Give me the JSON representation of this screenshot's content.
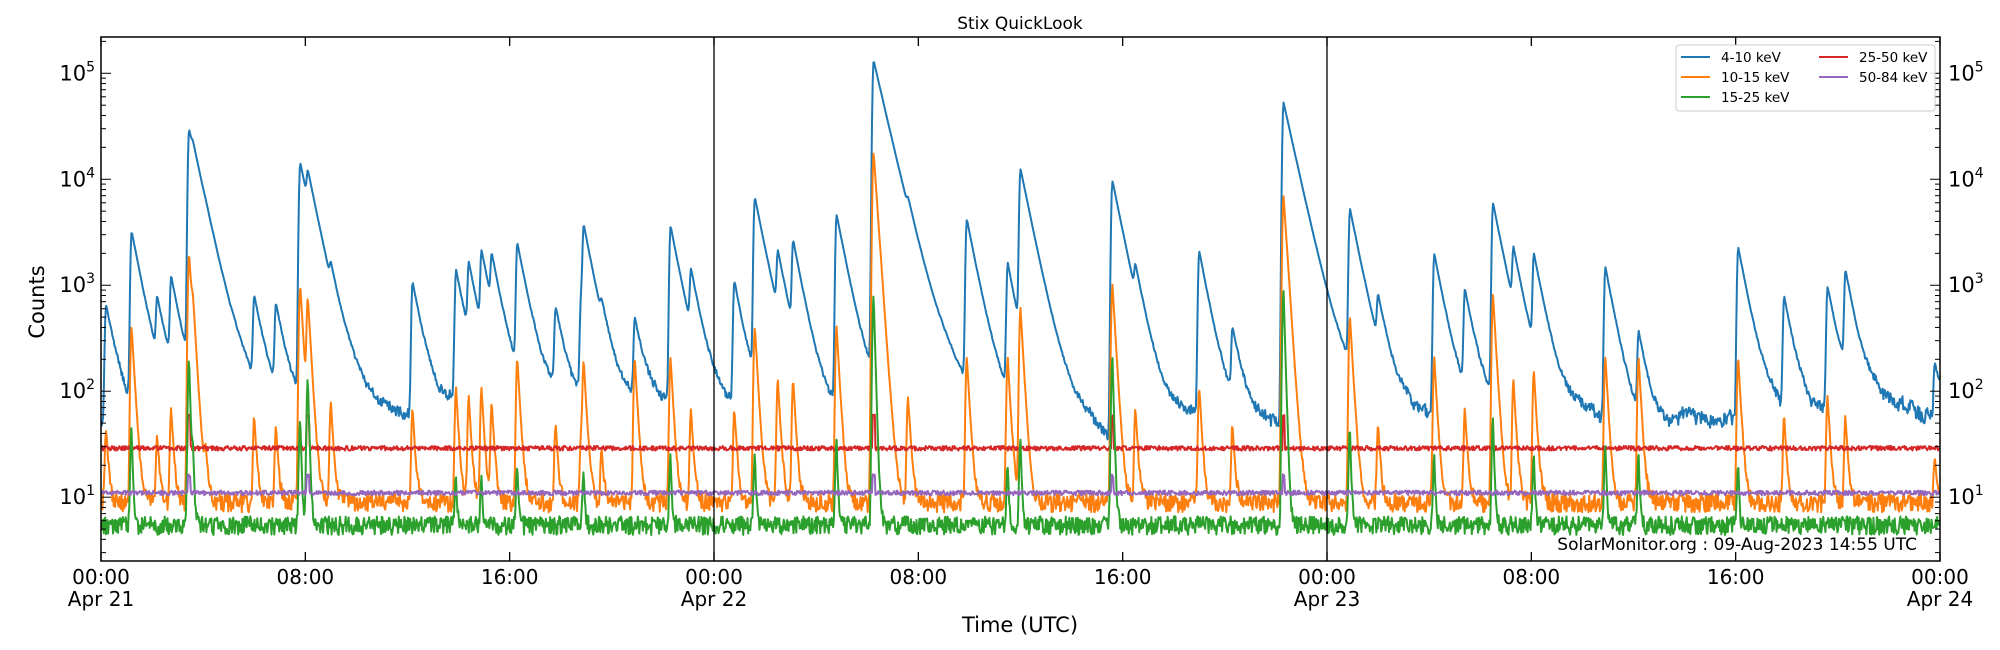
{
  "chart_data": {
    "type": "line",
    "title": "Stix QuickLook",
    "xlabel": "Time (UTC)",
    "ylabel": "Counts",
    "yscale": "log",
    "ylim": [
      2.5,
      220000
    ],
    "xlim_hours": [
      0,
      72
    ],
    "grid": false,
    "legend_placement": "top-right",
    "annotation": "SolarMonitor.org : 09-Aug-2023 14:55 UTC",
    "x_ticks": [
      {
        "hour": 0,
        "line1": "00:00",
        "line2": "Apr 21"
      },
      {
        "hour": 8,
        "line1": "08:00",
        "line2": ""
      },
      {
        "hour": 16,
        "line1": "16:00",
        "line2": ""
      },
      {
        "hour": 24,
        "line1": "00:00",
        "line2": "Apr 22"
      },
      {
        "hour": 32,
        "line1": "08:00",
        "line2": ""
      },
      {
        "hour": 40,
        "line1": "16:00",
        "line2": ""
      },
      {
        "hour": 48,
        "line1": "00:00",
        "line2": "Apr 23"
      },
      {
        "hour": 56,
        "line1": "08:00",
        "line2": ""
      },
      {
        "hour": 64,
        "line1": "16:00",
        "line2": ""
      },
      {
        "hour": 72,
        "line1": "00:00",
        "line2": "Apr 24"
      }
    ],
    "day_boundaries_hours": [
      24,
      48
    ],
    "y_ticks": [
      {
        "value": 10,
        "base": "10",
        "exp": "1"
      },
      {
        "value": 100,
        "base": "10",
        "exp": "2"
      },
      {
        "value": 1000,
        "base": "10",
        "exp": "3"
      },
      {
        "value": 10000,
        "base": "10",
        "exp": "4"
      },
      {
        "value": 100000,
        "base": "10",
        "exp": "5"
      }
    ],
    "series": [
      {
        "name": "4-10 keV",
        "color": "#1f77b4",
        "baseline": 50
      },
      {
        "name": "10-15 keV",
        "color": "#ff7f0e",
        "baseline": 9
      },
      {
        "name": "15-25 keV",
        "color": "#2ca02c",
        "baseline": 5.5
      },
      {
        "name": "25-50 keV",
        "color": "#d62728",
        "baseline": 29
      },
      {
        "name": "50-84 keV",
        "color": "#9467bd",
        "baseline": 11
      }
    ],
    "flares": [
      {
        "t": 0.2,
        "c4_10": 600,
        "c10_15": 35,
        "c15_25": 0
      },
      {
        "t": 1.2,
        "c4_10": 3100,
        "c10_15": 400,
        "c15_25": 40
      },
      {
        "t": 2.2,
        "c4_10": 550,
        "c10_15": 30,
        "c15_25": 0
      },
      {
        "t": 2.75,
        "c4_10": 1000,
        "c10_15": 60,
        "c15_25": 0
      },
      {
        "t": 3.45,
        "c4_10": 29000,
        "c10_15": 2000,
        "c15_25": 200
      },
      {
        "t": 3.6,
        "c4_10": 2800,
        "c10_15": 300,
        "c15_25": 20
      },
      {
        "t": 4.1,
        "c4_10": 150,
        "c10_15": 15,
        "c15_25": 0
      },
      {
        "t": 6.0,
        "c4_10": 650,
        "c10_15": 50,
        "c15_25": 0
      },
      {
        "t": 6.85,
        "c4_10": 550,
        "c10_15": 38,
        "c15_25": 0
      },
      {
        "t": 7.8,
        "c4_10": 14000,
        "c10_15": 1000,
        "c15_25": 50
      },
      {
        "t": 8.1,
        "c4_10": 5700,
        "c10_15": 700,
        "c15_25": 130
      },
      {
        "t": 9.0,
        "c4_10": 500,
        "c10_15": 70,
        "c15_25": 0
      },
      {
        "t": 12.2,
        "c4_10": 1000,
        "c10_15": 60,
        "c15_25": 0
      },
      {
        "t": 13.9,
        "c4_10": 1300,
        "c10_15": 100,
        "c15_25": 10
      },
      {
        "t": 14.4,
        "c4_10": 1300,
        "c10_15": 80,
        "c15_25": 0
      },
      {
        "t": 14.9,
        "c4_10": 1700,
        "c10_15": 100,
        "c15_25": 10
      },
      {
        "t": 15.3,
        "c4_10": 1300,
        "c10_15": 70,
        "c15_25": 0
      },
      {
        "t": 16.3,
        "c4_10": 2300,
        "c10_15": 200,
        "c15_25": 15
      },
      {
        "t": 17.8,
        "c4_10": 500,
        "c10_15": 40,
        "c15_25": 0
      },
      {
        "t": 18.8,
        "c4_10": 700,
        "c10_15": 30,
        "c15_25": 0
      },
      {
        "t": 18.9,
        "c4_10": 3100,
        "c10_15": 180,
        "c15_25": 12
      },
      {
        "t": 19.6,
        "c4_10": 200,
        "c10_15": 20,
        "c15_25": 0
      },
      {
        "t": 20.9,
        "c4_10": 400,
        "c10_15": 200,
        "c15_25": 0
      },
      {
        "t": 22.3,
        "c4_10": 3500,
        "c10_15": 200,
        "c15_25": 20
      },
      {
        "t": 23.1,
        "c4_10": 1000,
        "c10_15": 60,
        "c15_25": 0
      },
      {
        "t": 24.8,
        "c4_10": 1000,
        "c10_15": 60,
        "c15_25": 0
      },
      {
        "t": 25.6,
        "c4_10": 6500,
        "c10_15": 400,
        "c15_25": 20
      },
      {
        "t": 26.5,
        "c4_10": 1500,
        "c10_15": 120,
        "c15_25": 0
      },
      {
        "t": 27.1,
        "c4_10": 2200,
        "c10_15": 120,
        "c15_25": 0
      },
      {
        "t": 28.8,
        "c4_10": 4500,
        "c10_15": 400,
        "c15_25": 30
      },
      {
        "t": 30.25,
        "c4_10": 130000,
        "c10_15": 18000,
        "c15_25": 800
      },
      {
        "t": 31.6,
        "c4_10": 1200,
        "c10_15": 80,
        "c15_25": 0
      },
      {
        "t": 33.9,
        "c4_10": 4000,
        "c10_15": 200,
        "c15_25": 0
      },
      {
        "t": 35.5,
        "c4_10": 1500,
        "c10_15": 200,
        "c15_25": 15
      },
      {
        "t": 36.0,
        "c4_10": 12000,
        "c10_15": 600,
        "c15_25": 30
      },
      {
        "t": 39.6,
        "c4_10": 9500,
        "c10_15": 1000,
        "c15_25": 200
      },
      {
        "t": 40.5,
        "c4_10": 700,
        "c10_15": 60,
        "c15_25": 0
      },
      {
        "t": 43.0,
        "c4_10": 2000,
        "c10_15": 100,
        "c15_25": 0
      },
      {
        "t": 44.3,
        "c4_10": 300,
        "c10_15": 40,
        "c15_25": 0
      },
      {
        "t": 46.3,
        "c4_10": 52000,
        "c10_15": 7000,
        "c15_25": 900
      },
      {
        "t": 48.9,
        "c4_10": 5000,
        "c10_15": 500,
        "c15_25": 40
      },
      {
        "t": 50.0,
        "c4_10": 500,
        "c10_15": 40,
        "c15_25": 0
      },
      {
        "t": 52.2,
        "c4_10": 1900,
        "c10_15": 200,
        "c15_25": 20
      },
      {
        "t": 53.4,
        "c4_10": 800,
        "c10_15": 60,
        "c15_25": 0
      },
      {
        "t": 54.5,
        "c4_10": 5800,
        "c10_15": 800,
        "c15_25": 50
      },
      {
        "t": 55.3,
        "c4_10": 1600,
        "c10_15": 120,
        "c15_25": 0
      },
      {
        "t": 56.1,
        "c4_10": 1700,
        "c10_15": 150,
        "c15_25": 20
      },
      {
        "t": 58.9,
        "c4_10": 1400,
        "c10_15": 200,
        "c15_25": 25
      },
      {
        "t": 60.2,
        "c4_10": 300,
        "c10_15": 200,
        "c15_25": 20
      },
      {
        "t": 64.1,
        "c4_10": 2200,
        "c10_15": 200,
        "c15_25": 15
      },
      {
        "t": 65.9,
        "c4_10": 700,
        "c10_15": 50,
        "c15_25": 0
      },
      {
        "t": 67.6,
        "c4_10": 900,
        "c10_15": 80,
        "c15_25": 0
      },
      {
        "t": 68.3,
        "c4_10": 1200,
        "c10_15": 50,
        "c15_25": 0
      },
      {
        "t": 71.8,
        "c4_10": 120,
        "c10_15": 15,
        "c15_25": 0
      }
    ]
  }
}
